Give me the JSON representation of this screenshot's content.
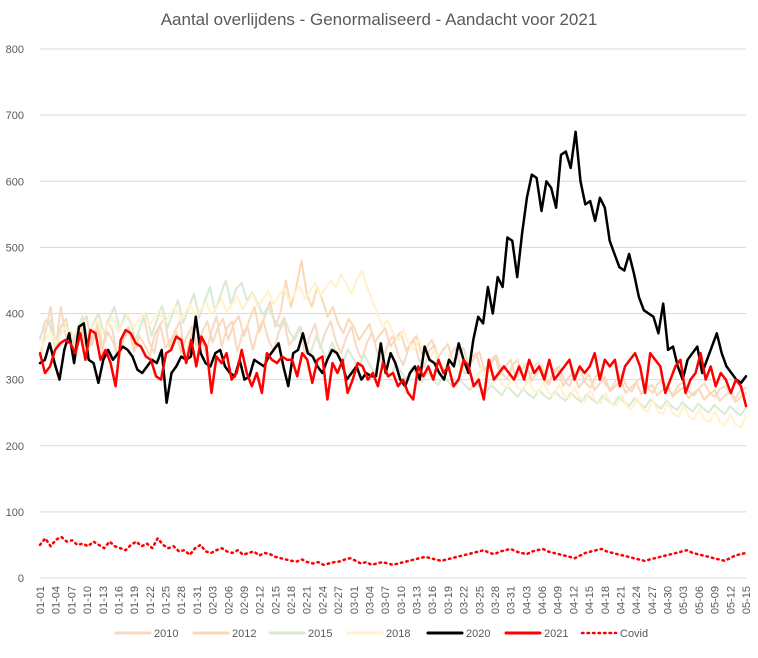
{
  "chart_data": {
    "type": "line",
    "title": "Aantal overlijdens - Genormaliseerd - Aandacht voor 2021",
    "ylim": [
      0,
      800
    ],
    "yticks": [
      0,
      100,
      200,
      300,
      400,
      500,
      600,
      700,
      800
    ],
    "grid": "horizontal",
    "legend_position": "bottom",
    "x_labels": [
      "01-01",
      "01-04",
      "01-07",
      "01-10",
      "01-13",
      "01-16",
      "01-19",
      "01-22",
      "01-25",
      "01-28",
      "01-31",
      "02-03",
      "02-06",
      "02-09",
      "02-12",
      "02-15",
      "02-18",
      "02-21",
      "02-24",
      "02-27",
      "03-01",
      "03-04",
      "03-07",
      "03-10",
      "03-13",
      "03-16",
      "03-19",
      "03-22",
      "03-25",
      "03-28",
      "03-31",
      "04-03",
      "04-06",
      "04-09",
      "04-12",
      "04-15",
      "04-18",
      "04-21",
      "04-24",
      "04-27",
      "04-30",
      "05-03",
      "05-06",
      "05-09",
      "05-12",
      "05-15"
    ],
    "series": [
      {
        "name": "2010",
        "color": "#f8d9c4",
        "style": "solid",
        "values": [
          360,
          390,
          380,
          345,
          410,
          365,
          372,
          335,
          384,
          396,
          352,
          378,
          342,
          390,
          374,
          330,
          365,
          380,
          348,
          372,
          396,
          358,
          340,
          382,
          392,
          346,
          374,
          388,
          330,
          364,
          384,
          362,
          340,
          372,
          396,
          350,
          378,
          388,
          342,
          370,
          380,
          345,
          375,
          390,
          360,
          344,
          372,
          388,
          352,
          364,
          380,
          340,
          366,
          384,
          348,
          372,
          388,
          358,
          340,
          364,
          380,
          348,
          330,
          356,
          372,
          340,
          328,
          354,
          366,
          336,
          322,
          348,
          360,
          330,
          318,
          344,
          352,
          326,
          312,
          338,
          348,
          320,
          308,
          332,
          340,
          314,
          304,
          326,
          336,
          310,
          300,
          322,
          330,
          306,
          296,
          318,
          326,
          302,
          292,
          314,
          320,
          298,
          290,
          308,
          316,
          296,
          288,
          304,
          312,
          292,
          286,
          300,
          308,
          290,
          282,
          298,
          304,
          288,
          280,
          294,
          300,
          284,
          278,
          292,
          296,
          282,
          276,
          288,
          294,
          280,
          274,
          286,
          290,
          278,
          272,
          284,
          288
        ]
      },
      {
        "name": "2012",
        "color": "#fad9b8",
        "style": "solid",
        "values": [
          335,
          370,
          410,
          350,
          380,
          392,
          345,
          368,
          376,
          340,
          362,
          384,
          350,
          372,
          356,
          330,
          360,
          378,
          342,
          366,
          352,
          336,
          370,
          382,
          348,
          360,
          374,
          340,
          364,
          380,
          350,
          372,
          388,
          356,
          378,
          392,
          360,
          384,
          396,
          366,
          390,
          410,
          372,
          396,
          418,
          380,
          402,
          450,
          410,
          440,
          480,
          430,
          410,
          440,
          420,
          395,
          410,
          385,
          370,
          392,
          380,
          360,
          372,
          384,
          356,
          368,
          378,
          350,
          362,
          372,
          344,
          356,
          366,
          338,
          350,
          360,
          332,
          344,
          354,
          326,
          338,
          348,
          320,
          332,
          342,
          314,
          326,
          336,
          308,
          320,
          330,
          302,
          314,
          324,
          298,
          310,
          320,
          294,
          306,
          316,
          290,
          302,
          312,
          288,
          298,
          308,
          284,
          294,
          304,
          282,
          290,
          300,
          280,
          288,
          296,
          278,
          286,
          292,
          276,
          284,
          290,
          274,
          282,
          288,
          272,
          280,
          286,
          270,
          278,
          284,
          268,
          276,
          282,
          266,
          274,
          280
        ]
      },
      {
        "name": "2015",
        "color": "#d9ead3",
        "style": "solid",
        "values": [
          365,
          378,
          390,
          350,
          370,
          382,
          356,
          372,
          396,
          362,
          384,
          400,
          370,
          392,
          410,
          376,
          398,
          388,
          360,
          382,
          400,
          366,
          390,
          412,
          378,
          400,
          420,
          386,
          408,
          430,
          394,
          418,
          440,
          404,
          428,
          450,
          414,
          438,
          446,
          420,
          432,
          416,
          398,
          410,
          392,
          380,
          394,
          372,
          360,
          380,
          352,
          340,
          366,
          348,
          330,
          356,
          340,
          322,
          346,
          332,
          316,
          338,
          324,
          310,
          330,
          318,
          304,
          324,
          312,
          300,
          318,
          306,
          296,
          312,
          300,
          292,
          306,
          296,
          288,
          300,
          292,
          284,
          296,
          288,
          280,
          292,
          284,
          276,
          290,
          282,
          274,
          286,
          278,
          272,
          284,
          276,
          270,
          282,
          274,
          268,
          280,
          272,
          266,
          278,
          270,
          264,
          276,
          268,
          262,
          274,
          266,
          260,
          272,
          264,
          258,
          270,
          262,
          256,
          268,
          260,
          254,
          266,
          258,
          252,
          264,
          256,
          250,
          262,
          254,
          248,
          260,
          252,
          246,
          258
        ]
      },
      {
        "name": "2018",
        "color": "#fff2cc",
        "style": "solid",
        "values": [
          345,
          360,
          372,
          355,
          368,
          380,
          362,
          374,
          386,
          366,
          378,
          390,
          370,
          382,
          394,
          374,
          386,
          398,
          378,
          390,
          402,
          382,
          394,
          406,
          386,
          398,
          410,
          390,
          402,
          414,
          394,
          406,
          418,
          398,
          410,
          422,
          402,
          414,
          426,
          406,
          418,
          430,
          410,
          422,
          434,
          414,
          426,
          438,
          418,
          430,
          442,
          422,
          434,
          446,
          426,
          438,
          450,
          440,
          460,
          445,
          430,
          450,
          465,
          440,
          420,
          400,
          380,
          390,
          370,
          360,
          375,
          355,
          345,
          360,
          340,
          330,
          345,
          325,
          318,
          335,
          315,
          308,
          325,
          305,
          300,
          318,
          298,
          292,
          312,
          292,
          288,
          306,
          288,
          284,
          300,
          284,
          280,
          296,
          280,
          276,
          292,
          276,
          272,
          288,
          272,
          268,
          284,
          268,
          264,
          280,
          264,
          260,
          276,
          260,
          256,
          272,
          256,
          252,
          268,
          252,
          248,
          264,
          248,
          244,
          260,
          244,
          240,
          256,
          240,
          236,
          252,
          236,
          232,
          248,
          232,
          228,
          244
        ]
      },
      {
        "name": "2020",
        "color": "#000000",
        "style": "solid",
        "values": [
          325,
          330,
          355,
          325,
          300,
          345,
          370,
          325,
          380,
          385,
          330,
          325,
          295,
          330,
          345,
          330,
          340,
          350,
          345,
          335,
          315,
          310,
          320,
          330,
          325,
          345,
          265,
          310,
          320,
          335,
          330,
          335,
          395,
          340,
          325,
          320,
          340,
          345,
          320,
          310,
          305,
          330,
          300,
          305,
          330,
          325,
          320,
          335,
          345,
          355,
          320,
          290,
          340,
          345,
          370,
          340,
          335,
          320,
          310,
          330,
          345,
          340,
          325,
          300,
          310,
          320,
          300,
          310,
          305,
          305,
          355,
          310,
          340,
          325,
          300,
          290,
          310,
          320,
          300,
          350,
          330,
          325,
          310,
          300,
          330,
          320,
          355,
          330,
          310,
          360,
          395,
          385,
          440,
          400,
          455,
          440,
          515,
          510,
          455,
          520,
          575,
          610,
          605,
          555,
          600,
          590,
          560,
          640,
          645,
          620,
          675,
          600,
          565,
          570,
          540,
          575,
          560,
          510,
          490,
          470,
          465,
          490,
          460,
          425,
          405,
          400,
          395,
          370,
          415,
          345,
          350,
          320,
          300,
          330,
          340,
          350,
          310,
          330,
          350,
          370,
          340,
          320,
          310,
          300,
          295,
          305
        ]
      },
      {
        "name": "2021",
        "color": "#ff0000",
        "style": "solid",
        "values": [
          340,
          310,
          320,
          345,
          355,
          360,
          355,
          340,
          370,
          330,
          375,
          370,
          330,
          345,
          325,
          290,
          360,
          375,
          370,
          355,
          350,
          335,
          330,
          305,
          300,
          340,
          345,
          365,
          360,
          325,
          360,
          320,
          365,
          350,
          280,
          335,
          325,
          340,
          300,
          310,
          345,
          310,
          290,
          310,
          280,
          340,
          330,
          325,
          335,
          330,
          330,
          305,
          340,
          330,
          295,
          330,
          335,
          270,
          325,
          310,
          330,
          280,
          300,
          325,
          320,
          300,
          310,
          290,
          325,
          305,
          310,
          290,
          300,
          280,
          270,
          320,
          305,
          320,
          300,
          330,
          310,
          320,
          290,
          300,
          330,
          320,
          290,
          300,
          270,
          330,
          300,
          310,
          320,
          310,
          300,
          320,
          300,
          330,
          310,
          320,
          300,
          330,
          300,
          310,
          320,
          330,
          300,
          320,
          310,
          320,
          340,
          300,
          330,
          320,
          330,
          290,
          320,
          330,
          340,
          320,
          280,
          340,
          330,
          320,
          280,
          300,
          320,
          330,
          280,
          300,
          310,
          340,
          300,
          320,
          290,
          310,
          300,
          280,
          300,
          290,
          260
        ]
      },
      {
        "name": "Covid",
        "color": "#ff0000",
        "style": "dotted",
        "values": [
          50,
          60,
          48,
          58,
          62,
          55,
          57,
          50,
          52,
          48,
          55,
          50,
          45,
          55,
          48,
          45,
          42,
          50,
          55,
          48,
          52,
          45,
          60,
          50,
          45,
          48,
          40,
          42,
          35,
          45,
          50,
          40,
          38,
          42,
          45,
          40,
          38,
          42,
          35,
          38,
          40,
          34,
          38,
          36,
          32,
          30,
          28,
          26,
          25,
          28,
          24,
          22,
          24,
          20,
          22,
          24,
          25,
          28,
          30,
          26,
          22,
          24,
          20,
          22,
          24,
          22,
          20,
          22,
          24,
          26,
          28,
          30,
          32,
          30,
          28,
          26,
          28,
          30,
          32,
          34,
          36,
          38,
          40,
          42,
          38,
          36,
          40,
          42,
          44,
          40,
          38,
          36,
          40,
          42,
          44,
          40,
          38,
          36,
          34,
          32,
          30,
          34,
          38,
          40,
          42,
          44,
          40,
          38,
          36,
          34,
          32,
          30,
          28,
          26,
          28,
          30,
          32,
          34,
          36,
          38,
          40,
          42,
          38,
          36,
          34,
          32,
          30,
          28,
          26,
          30,
          34,
          36,
          38
        ]
      }
    ]
  }
}
